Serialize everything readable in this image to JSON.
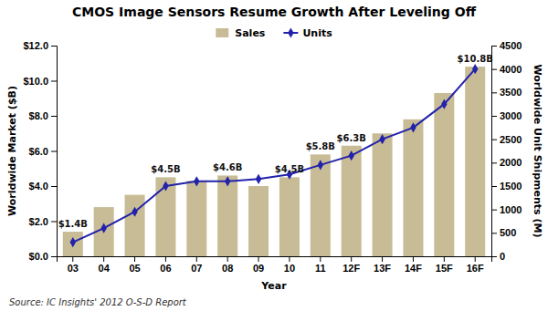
{
  "chart_data": {
    "type": "bar",
    "title": "CMOS Image Sensors Resume Growth After Leveling Off",
    "xlabel": "Year",
    "ylabel": "Worldwide Market ($B)",
    "y2label": "Worldwide Unit Shipments (M)",
    "categories": [
      "03",
      "04",
      "05",
      "06",
      "07",
      "08",
      "09",
      "10",
      "11",
      "12F",
      "13F",
      "14F",
      "15F",
      "16F"
    ],
    "series": [
      {
        "name": "Sales",
        "type": "bar",
        "color": "#C8BC96",
        "values": [
          1.4,
          2.8,
          3.5,
          4.5,
          4.3,
          4.6,
          4.0,
          4.5,
          5.8,
          6.3,
          7.0,
          7.8,
          9.3,
          10.8
        ]
      },
      {
        "name": "Units",
        "type": "line",
        "axis": "y2",
        "color": "#2222AA",
        "marker": "diamond",
        "values": [
          300,
          600,
          950,
          1500,
          1600,
          1600,
          1650,
          1750,
          1950,
          2150,
          2500,
          2750,
          3250,
          4000
        ]
      }
    ],
    "ylim": [
      0,
      12.0
    ],
    "yticks": [
      {
        "value": 0,
        "label": "$0.0"
      },
      {
        "value": 2,
        "label": "$2.0"
      },
      {
        "value": 4,
        "label": "$4.0"
      },
      {
        "value": 6,
        "label": "$6.0"
      },
      {
        "value": 8,
        "label": "$8.0"
      },
      {
        "value": 10,
        "label": "$10.0"
      },
      {
        "value": 12,
        "label": "$12.0"
      }
    ],
    "y2lim": [
      0,
      4500
    ],
    "y2ticks": [
      0,
      500,
      1000,
      1500,
      2000,
      2500,
      3000,
      3500,
      4000,
      4500
    ],
    "annotations": [
      {
        "category": "03",
        "value": 1.4,
        "label": "$1.4B"
      },
      {
        "category": "06",
        "value": 4.5,
        "label": "$4.5B"
      },
      {
        "category": "08",
        "value": 4.6,
        "label": "$4.6B"
      },
      {
        "category": "10",
        "value": 4.5,
        "label": "$4.5B"
      },
      {
        "category": "11",
        "value": 5.8,
        "label": "$5.8B"
      },
      {
        "category": "12F",
        "value": 6.3,
        "label": "$6.3B"
      },
      {
        "category": "16F",
        "value": 10.8,
        "label": "$10.8B"
      }
    ],
    "source": "Source: IC Insights' 2012 O-S-D Report",
    "legend": "top",
    "grid": false
  }
}
